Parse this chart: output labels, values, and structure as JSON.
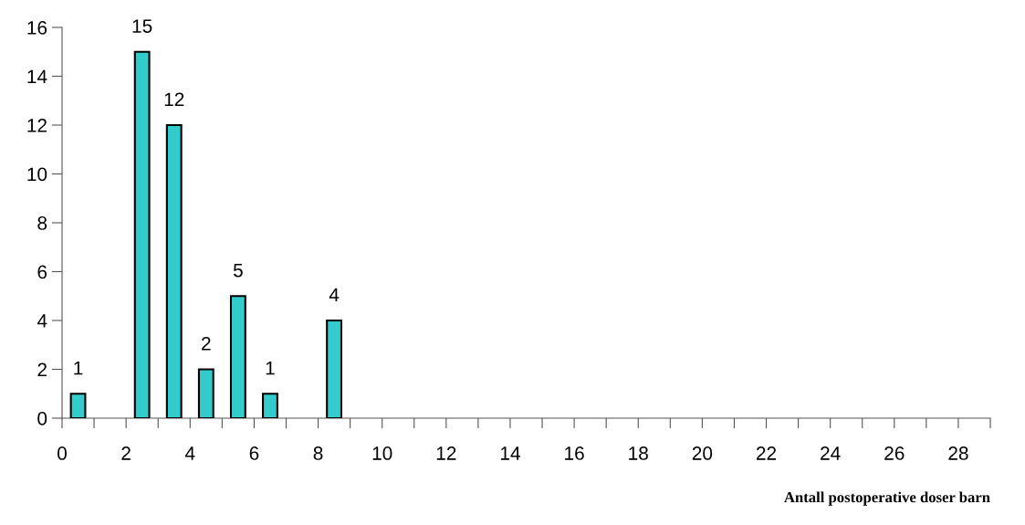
{
  "chart_data": {
    "type": "bar",
    "xlabel": "Antall postoperative doser barn",
    "x": [
      0.5,
      2.5,
      3.5,
      4.5,
      5.5,
      6.5,
      8.5
    ],
    "values": [
      1,
      15,
      12,
      2,
      5,
      1,
      4
    ],
    "color": "#33cccc",
    "data_labels": true,
    "xlim": [
      0,
      29
    ],
    "xticks": [
      0,
      {
        "value": 1,
        "label": null
      },
      2,
      {
        "value": 3,
        "label": null
      },
      4,
      {
        "value": 5,
        "label": null
      },
      6,
      {
        "value": 7,
        "label": null
      },
      8,
      {
        "value": 9,
        "label": null
      },
      10,
      {
        "value": 11,
        "label": null
      },
      12,
      {
        "value": 13,
        "label": null
      },
      14,
      {
        "value": 15,
        "label": null
      },
      16,
      {
        "value": 17,
        "label": null
      },
      18,
      {
        "value": 19,
        "label": null
      },
      20,
      {
        "value": 21,
        "label": null
      },
      22,
      {
        "value": 23,
        "label": null
      },
      24,
      {
        "value": 25,
        "label": null
      },
      26,
      {
        "value": 27,
        "label": null
      },
      28,
      {
        "value": 29,
        "label": null
      }
    ],
    "ylim": [
      0,
      16
    ],
    "yticks": [
      0,
      2,
      4,
      6,
      8,
      10,
      12,
      14,
      16
    ],
    "grid": false,
    "legend": false
  }
}
